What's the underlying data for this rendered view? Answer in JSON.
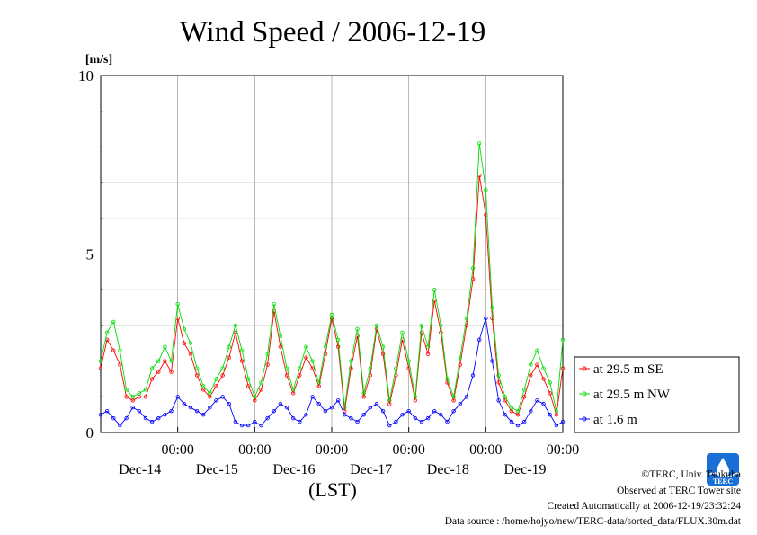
{
  "chart_data": {
    "type": "line",
    "title": "Wind Speed / 2006-12-19",
    "ylabel": "[m/s]",
    "xlabel": "(LST)",
    "ylim": [
      0,
      10
    ],
    "xlim": [
      0,
      144
    ],
    "grid": true,
    "legend_placement": "right",
    "y_ticks": [
      {
        "value": 0,
        "label": "0"
      },
      {
        "value": 5,
        "label": "5"
      },
      {
        "value": 10,
        "label": "10"
      }
    ],
    "x_ticks": [
      {
        "value": 24,
        "time": "00:00",
        "date": "Dec-14"
      },
      {
        "value": 48,
        "time": "00:00",
        "date": "Dec-15"
      },
      {
        "value": 72,
        "time": "00:00",
        "date": "Dec-16"
      },
      {
        "value": 96,
        "time": "00:00",
        "date": "Dec-17"
      },
      {
        "value": 120,
        "time": "00:00",
        "date": "Dec-18"
      },
      {
        "value": 144,
        "time": "00:00",
        "date": "Dec-19"
      }
    ],
    "series": [
      {
        "name": "at 29.5 m SE",
        "color": "#ff0000",
        "x": [
          0,
          2,
          4,
          6,
          8,
          10,
          12,
          14,
          16,
          18,
          20,
          22,
          24,
          26,
          28,
          30,
          32,
          34,
          36,
          38,
          40,
          42,
          44,
          46,
          48,
          50,
          52,
          54,
          56,
          58,
          60,
          62,
          64,
          66,
          68,
          70,
          72,
          74,
          76,
          78,
          80,
          82,
          84,
          86,
          88,
          90,
          92,
          94,
          96,
          98,
          100,
          102,
          104,
          106,
          108,
          110,
          112,
          114,
          116,
          118,
          120,
          122,
          124,
          126,
          128,
          130,
          132,
          134,
          136,
          138,
          140,
          142,
          144
        ],
        "y": [
          1.8,
          2.6,
          2.3,
          1.9,
          1.0,
          0.9,
          1.0,
          1.0,
          1.5,
          1.7,
          2.0,
          1.7,
          3.2,
          2.5,
          2.2,
          1.6,
          1.2,
          1.0,
          1.3,
          1.6,
          2.1,
          2.8,
          2.0,
          1.3,
          0.9,
          1.2,
          1.9,
          3.4,
          2.4,
          1.6,
          1.1,
          1.6,
          2.1,
          1.8,
          1.3,
          2.2,
          3.2,
          2.4,
          0.6,
          1.8,
          2.7,
          1.0,
          1.6,
          2.9,
          2.2,
          0.8,
          1.6,
          2.6,
          1.8,
          0.9,
          2.8,
          2.2,
          3.7,
          2.8,
          1.4,
          0.9,
          1.9,
          3.0,
          4.3,
          7.2,
          6.1,
          3.2,
          1.4,
          0.9,
          0.6,
          0.5,
          1.0,
          1.6,
          1.9,
          1.5,
          1.1,
          0.5,
          1.8
        ]
      },
      {
        "name": "at 29.5 m NW",
        "color": "#00dd00",
        "x": [
          0,
          2,
          4,
          6,
          8,
          10,
          12,
          14,
          16,
          18,
          20,
          22,
          24,
          26,
          28,
          30,
          32,
          34,
          36,
          38,
          40,
          42,
          44,
          46,
          48,
          50,
          52,
          54,
          56,
          58,
          60,
          62,
          64,
          66,
          68,
          70,
          72,
          74,
          76,
          78,
          80,
          82,
          84,
          86,
          88,
          90,
          92,
          94,
          96,
          98,
          100,
          102,
          104,
          106,
          108,
          110,
          112,
          114,
          116,
          118,
          120,
          122,
          124,
          126,
          128,
          130,
          132,
          134,
          136,
          138,
          140,
          142,
          144
        ],
        "y": [
          2.0,
          2.8,
          3.1,
          2.3,
          1.2,
          1.0,
          1.1,
          1.2,
          1.8,
          2.0,
          2.4,
          2.0,
          3.6,
          2.9,
          2.5,
          1.8,
          1.3,
          1.1,
          1.5,
          1.8,
          2.4,
          3.0,
          2.3,
          1.5,
          1.0,
          1.4,
          2.2,
          3.6,
          2.7,
          1.8,
          1.2,
          1.8,
          2.4,
          2.0,
          1.4,
          2.4,
          3.3,
          2.6,
          0.7,
          2.0,
          2.9,
          1.1,
          1.8,
          3.0,
          2.4,
          0.9,
          1.8,
          2.8,
          2.0,
          1.0,
          3.0,
          2.4,
          4.0,
          3.0,
          1.5,
          1.0,
          2.1,
          3.2,
          4.6,
          8.1,
          6.8,
          3.5,
          1.6,
          1.0,
          0.7,
          0.6,
          1.2,
          1.9,
          2.3,
          1.8,
          1.4,
          0.6,
          2.6
        ]
      },
      {
        "name": "at 1.6 m",
        "color": "#0000ff",
        "x": [
          0,
          2,
          4,
          6,
          8,
          10,
          12,
          14,
          16,
          18,
          20,
          22,
          24,
          26,
          28,
          30,
          32,
          34,
          36,
          38,
          40,
          42,
          44,
          46,
          48,
          50,
          52,
          54,
          56,
          58,
          60,
          62,
          64,
          66,
          68,
          70,
          72,
          74,
          76,
          78,
          80,
          82,
          84,
          86,
          88,
          90,
          92,
          94,
          96,
          98,
          100,
          102,
          104,
          106,
          108,
          110,
          112,
          114,
          116,
          118,
          120,
          122,
          124,
          126,
          128,
          130,
          132,
          134,
          136,
          138,
          140,
          142,
          144
        ],
        "y": [
          0.5,
          0.6,
          0.4,
          0.2,
          0.4,
          0.7,
          0.6,
          0.4,
          0.3,
          0.4,
          0.5,
          0.6,
          1.0,
          0.8,
          0.7,
          0.6,
          0.5,
          0.7,
          0.9,
          1.0,
          0.8,
          0.3,
          0.2,
          0.2,
          0.3,
          0.2,
          0.4,
          0.6,
          0.8,
          0.7,
          0.4,
          0.3,
          0.5,
          1.0,
          0.8,
          0.6,
          0.7,
          0.9,
          0.5,
          0.4,
          0.3,
          0.5,
          0.7,
          0.8,
          0.6,
          0.2,
          0.3,
          0.5,
          0.6,
          0.4,
          0.3,
          0.4,
          0.6,
          0.5,
          0.3,
          0.6,
          0.8,
          1.0,
          1.6,
          2.6,
          3.2,
          2.0,
          0.9,
          0.5,
          0.3,
          0.2,
          0.3,
          0.6,
          0.9,
          0.8,
          0.5,
          0.2,
          0.3
        ]
      }
    ]
  },
  "legend": {
    "items": [
      {
        "label": "at 29.5 m SE",
        "color": "#ff0000"
      },
      {
        "label": "at 29.5 m NW",
        "color": "#00dd00"
      },
      {
        "label": "at 1.6 m",
        "color": "#0000ff"
      }
    ]
  },
  "footer": {
    "copyright": "©TERC, Univ. Tsukuba",
    "observed": "Observed at TERC Tower site",
    "created": "Created Automatically at 2006-12-19/23:32:24",
    "source": "Data source : /home/hojyo/new/TERC-data/sorted_data/FLUX.30m.dat",
    "logo_text": "TERC"
  }
}
